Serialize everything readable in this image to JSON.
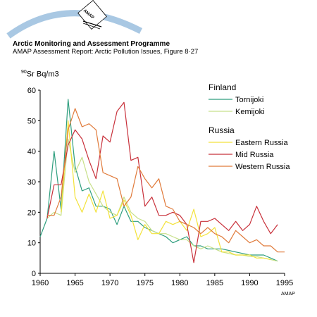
{
  "header": {
    "logo_text": "AMAP",
    "title": "Arctic Monitoring and Assessment Programme",
    "subtitle": "AMAP Assessment Report: Arctic Pollution Issues, Figure 8·27"
  },
  "footer": {
    "credit": "AMAP"
  },
  "colors": {
    "arc": "#a9c8e3",
    "Tornijoki": "#2e9e7e",
    "Kemijoki": "#c8e08a",
    "Eastern Russia": "#f3e23a",
    "Mid Russia": "#c8303a",
    "Western Russia": "#e07a3a"
  },
  "chart_data": {
    "type": "line",
    "title": "",
    "ylabel_superscript": "90",
    "ylabel": "Sr Bq/m3",
    "xlabel": "",
    "xlim": [
      1960,
      1995
    ],
    "ylim": [
      0,
      60
    ],
    "xticks": [
      1960,
      1965,
      1970,
      1975,
      1980,
      1985,
      1990,
      1995
    ],
    "yticks": [
      0,
      10,
      20,
      30,
      40,
      50,
      60
    ],
    "grid": false,
    "legend_position": "top-right",
    "legend_groups": [
      {
        "title": "Finland",
        "series": [
          "Tornijoki",
          "Kemijoki"
        ]
      },
      {
        "title": "Russia",
        "series": [
          "Eastern Russia",
          "Mid Russia",
          "Western Russia"
        ]
      }
    ],
    "series": [
      {
        "name": "Tornijoki",
        "x": [
          1960,
          1960.5,
          1961,
          1962,
          1963,
          1964,
          1965,
          1966,
          1967,
          1968,
          1969,
          1970,
          1971,
          1972,
          1973,
          1974,
          1975,
          1976,
          1977,
          1978,
          1979,
          1980,
          1981,
          1982,
          1983,
          1984,
          1985,
          1986,
          1987,
          1988,
          1989,
          1990,
          1991,
          1992,
          1993,
          1994
        ],
        "y": [
          12,
          15,
          18,
          40,
          21,
          57,
          35,
          27,
          28,
          22,
          22,
          21,
          16,
          22,
          17,
          17,
          15,
          14,
          13,
          12,
          10,
          11,
          12,
          9,
          9,
          8,
          8,
          8,
          7.5,
          7,
          6.5,
          6,
          6,
          6,
          5,
          4
        ]
      },
      {
        "name": "Kemijoki",
        "x": [
          1961,
          1962,
          1963,
          1964,
          1965,
          1966,
          1967,
          1968,
          1969,
          1970,
          1971,
          1972,
          1973,
          1974,
          1975,
          1976,
          1977,
          1978,
          1979,
          1980,
          1981,
          1982,
          1983,
          1984,
          1985,
          1986,
          1987,
          1988,
          1989,
          1990,
          1991,
          1992,
          1993,
          1994
        ],
        "y": [
          18,
          20,
          19,
          44,
          33,
          38,
          30,
          26,
          22,
          20,
          19,
          25,
          20,
          18,
          17,
          14,
          13,
          13,
          12,
          11,
          11,
          9,
          8,
          9,
          8,
          7,
          6.5,
          6,
          6,
          5.5,
          5.5,
          5,
          4.5,
          4
        ]
      },
      {
        "name": "Eastern Russia",
        "x": [
          1963,
          1964,
          1965,
          1966,
          1967,
          1968,
          1969,
          1970,
          1971,
          1972,
          1973,
          1974,
          1975,
          1976,
          1977,
          1978,
          1979,
          1980,
          1981,
          1982,
          1983,
          1984,
          1985,
          1986,
          1987,
          1988,
          1989,
          1990,
          1991,
          1992,
          1993
        ],
        "y": [
          20,
          50,
          25,
          20,
          26,
          20,
          27,
          18,
          19,
          24,
          19,
          11,
          16,
          13,
          13,
          17,
          16,
          17,
          14,
          21,
          12,
          13,
          15,
          7,
          7,
          6,
          6,
          6,
          5,
          5,
          4.5
        ]
      },
      {
        "name": "Mid Russia",
        "x": [
          1961,
          1962,
          1963,
          1964,
          1965,
          1966,
          1967,
          1968,
          1969,
          1970,
          1971,
          1972,
          1973,
          1974,
          1975,
          1976,
          1977,
          1978,
          1979,
          1980,
          1981,
          1982,
          1983,
          1984,
          1985,
          1986,
          1987,
          1988,
          1989,
          1990,
          1991,
          1992,
          1993,
          1994
        ],
        "y": [
          18,
          29,
          29,
          42,
          47,
          44,
          37,
          31,
          45,
          43,
          53,
          56,
          37,
          38,
          22,
          25,
          19,
          19,
          20,
          19,
          16,
          3.5,
          17,
          17,
          18,
          16,
          14,
          17,
          14,
          16,
          22,
          17,
          13,
          16
        ]
      },
      {
        "name": "Western Russia",
        "x": [
          1961,
          1962,
          1963,
          1964,
          1965,
          1966,
          1967,
          1968,
          1969,
          1970,
          1971,
          1972,
          1973,
          1974,
          1975,
          1976,
          1977,
          1978,
          1979,
          1980,
          1981,
          1982,
          1983,
          1984,
          1985,
          1986,
          1987,
          1988,
          1989,
          1990,
          1991,
          1992,
          1993,
          1994,
          1995
        ],
        "y": [
          19,
          19,
          25,
          47,
          54,
          48,
          49,
          47,
          33,
          32,
          31,
          22,
          25,
          35,
          31,
          28,
          31,
          22,
          21,
          17,
          16,
          15,
          13,
          15,
          13,
          12,
          10,
          14,
          12,
          10,
          11,
          9,
          9,
          7,
          7
        ]
      }
    ]
  }
}
